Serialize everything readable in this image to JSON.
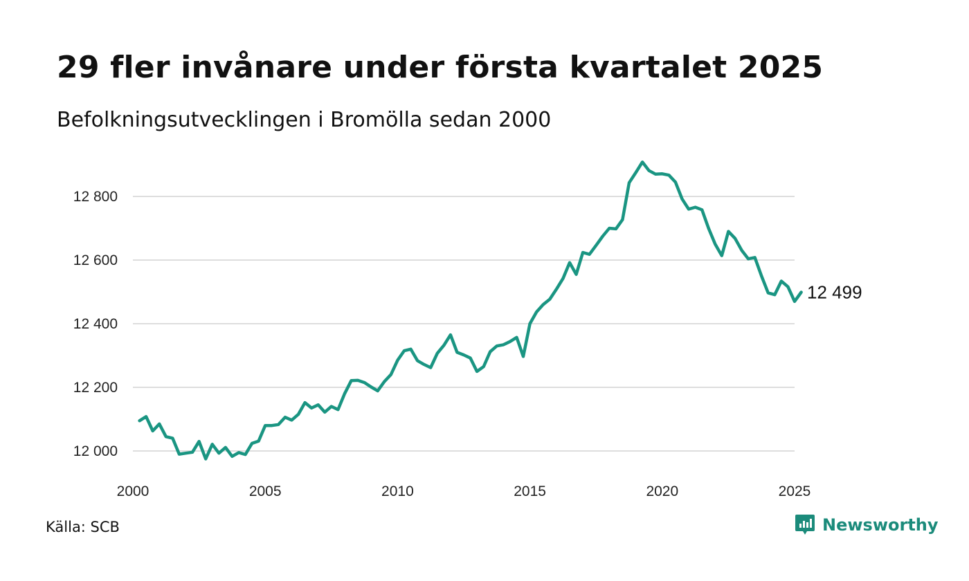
{
  "title": "29 fler invånare under första kvartalet 2025",
  "subtitle": "Befolkningsutvecklingen i Bromölla sedan 2000",
  "source": "Källa: SCB",
  "brand": {
    "name": "Newsworthy",
    "logo_icon": "newsworthy-logo-icon",
    "color": "#1b8b7b"
  },
  "chart_data": {
    "type": "line",
    "line_color": "#1a9582",
    "grid": true,
    "xlim": [
      2000,
      2025
    ],
    "ylim": [
      11950,
      12950
    ],
    "y_ticks": [
      {
        "value": 12000,
        "label": "12 000"
      },
      {
        "value": 12200,
        "label": "12 200"
      },
      {
        "value": 12400,
        "label": "12 400"
      },
      {
        "value": 12600,
        "label": "12 600"
      },
      {
        "value": 12800,
        "label": "12 800"
      }
    ],
    "x_ticks": [
      {
        "value": 2000,
        "label": "2000"
      },
      {
        "value": 2005,
        "label": "2005"
      },
      {
        "value": 2010,
        "label": "2010"
      },
      {
        "value": 2015,
        "label": "2015"
      },
      {
        "value": 2020,
        "label": "2020"
      },
      {
        "value": 2025,
        "label": "2025"
      }
    ],
    "end_label": "12 499",
    "series": [
      {
        "x": [
          2000.25,
          2000.5,
          2000.75,
          2001.0,
          2001.25,
          2001.5,
          2001.75,
          2002.0,
          2002.25,
          2002.5,
          2002.75,
          2003.0,
          2003.25,
          2003.5,
          2003.75,
          2004.0,
          2004.25,
          2004.5,
          2004.75,
          2005.0,
          2005.25,
          2005.5,
          2005.75,
          2006.0,
          2006.25,
          2006.5,
          2006.75,
          2007.0,
          2007.25,
          2007.5,
          2007.75,
          2008.0,
          2008.25,
          2008.5,
          2008.75,
          2009.0,
          2009.25,
          2009.5,
          2009.75,
          2010.0,
          2010.25,
          2010.5,
          2010.75,
          2011.0,
          2011.25,
          2011.5,
          2011.75,
          2012.0,
          2012.25,
          2012.5,
          2012.75,
          2013.0,
          2013.25,
          2013.5,
          2013.75,
          2014.0,
          2014.25,
          2014.5,
          2014.75,
          2015.0,
          2015.25,
          2015.5,
          2015.75,
          2016.0,
          2016.25,
          2016.5,
          2016.75,
          2017.0,
          2017.25,
          2017.5,
          2017.75,
          2018.0,
          2018.25,
          2018.5,
          2018.75,
          2019.0,
          2019.25,
          2019.5,
          2019.75,
          2020.0,
          2020.25,
          2020.5,
          2020.75,
          2021.0,
          2021.25,
          2021.5,
          2021.75,
          2022.0,
          2022.25,
          2022.5,
          2022.75,
          2023.0,
          2023.25,
          2023.5,
          2023.75,
          2024.0,
          2024.25,
          2024.5,
          2024.75,
          2025.0,
          2025.25
        ],
        "y": [
          12095,
          12108,
          12063,
          12085,
          12045,
          12040,
          11990,
          11993,
          11996,
          12030,
          11975,
          12021,
          11993,
          12011,
          11983,
          11995,
          11989,
          12024,
          12031,
          12080,
          12080,
          12083,
          12106,
          12097,
          12115,
          12152,
          12135,
          12145,
          12122,
          12140,
          12130,
          12180,
          12221,
          12222,
          12215,
          12201,
          12189,
          12218,
          12240,
          12285,
          12315,
          12320,
          12284,
          12272,
          12262,
          12307,
          12332,
          12365,
          12310,
          12302,
          12292,
          12250,
          12265,
          12312,
          12330,
          12334,
          12344,
          12357,
          12297,
          12400,
          12437,
          12460,
          12477,
          12508,
          12542,
          12592,
          12555,
          12624,
          12618,
          12646,
          12675,
          12700,
          12698,
          12727,
          12843,
          12875,
          12908,
          12881,
          12870,
          12871,
          12867,
          12845,
          12792,
          12760,
          12766,
          12758,
          12700,
          12650,
          12614,
          12690,
          12668,
          12631,
          12604,
          12608,
          12550,
          12497,
          12491,
          12534,
          12516,
          12470,
          12499
        ]
      }
    ]
  }
}
